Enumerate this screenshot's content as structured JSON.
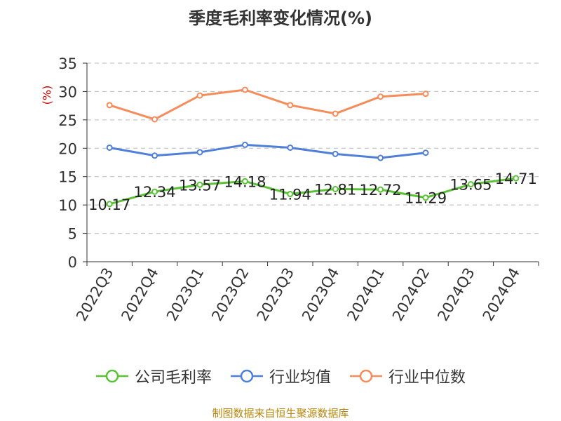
{
  "chart_data": {
    "type": "line",
    "title": "季度毛利率变化情况(%)",
    "ylabel": "(%)",
    "xlabel": "",
    "ylim": [
      0,
      35
    ],
    "yticks": [
      0,
      5,
      10,
      15,
      20,
      25,
      30,
      35
    ],
    "grid": true,
    "legend_position": "bottom",
    "categories": [
      "2022Q3",
      "2022Q4",
      "2023Q1",
      "2023Q2",
      "2023Q3",
      "2023Q4",
      "2024Q1",
      "2024Q2",
      "2024Q3",
      "2024Q4"
    ],
    "series": [
      {
        "name": "公司毛利率",
        "color": "#5ac335",
        "values": [
          10.17,
          12.34,
          13.57,
          14.18,
          11.94,
          12.81,
          12.72,
          11.29,
          13.65,
          14.71
        ],
        "labels": true
      },
      {
        "name": "行业均值",
        "color": "#4f7fd8",
        "values": [
          20.1,
          18.7,
          19.3,
          20.6,
          20.1,
          19.0,
          18.3,
          19.2,
          null,
          null
        ],
        "labels": false
      },
      {
        "name": "行业中位数",
        "color": "#f58c5a",
        "values": [
          27.6,
          25.1,
          29.3,
          30.3,
          27.6,
          26.1,
          29.1,
          29.6,
          null,
          null
        ],
        "labels": false
      }
    ]
  },
  "source": "制图数据来自恒生聚源数据库"
}
